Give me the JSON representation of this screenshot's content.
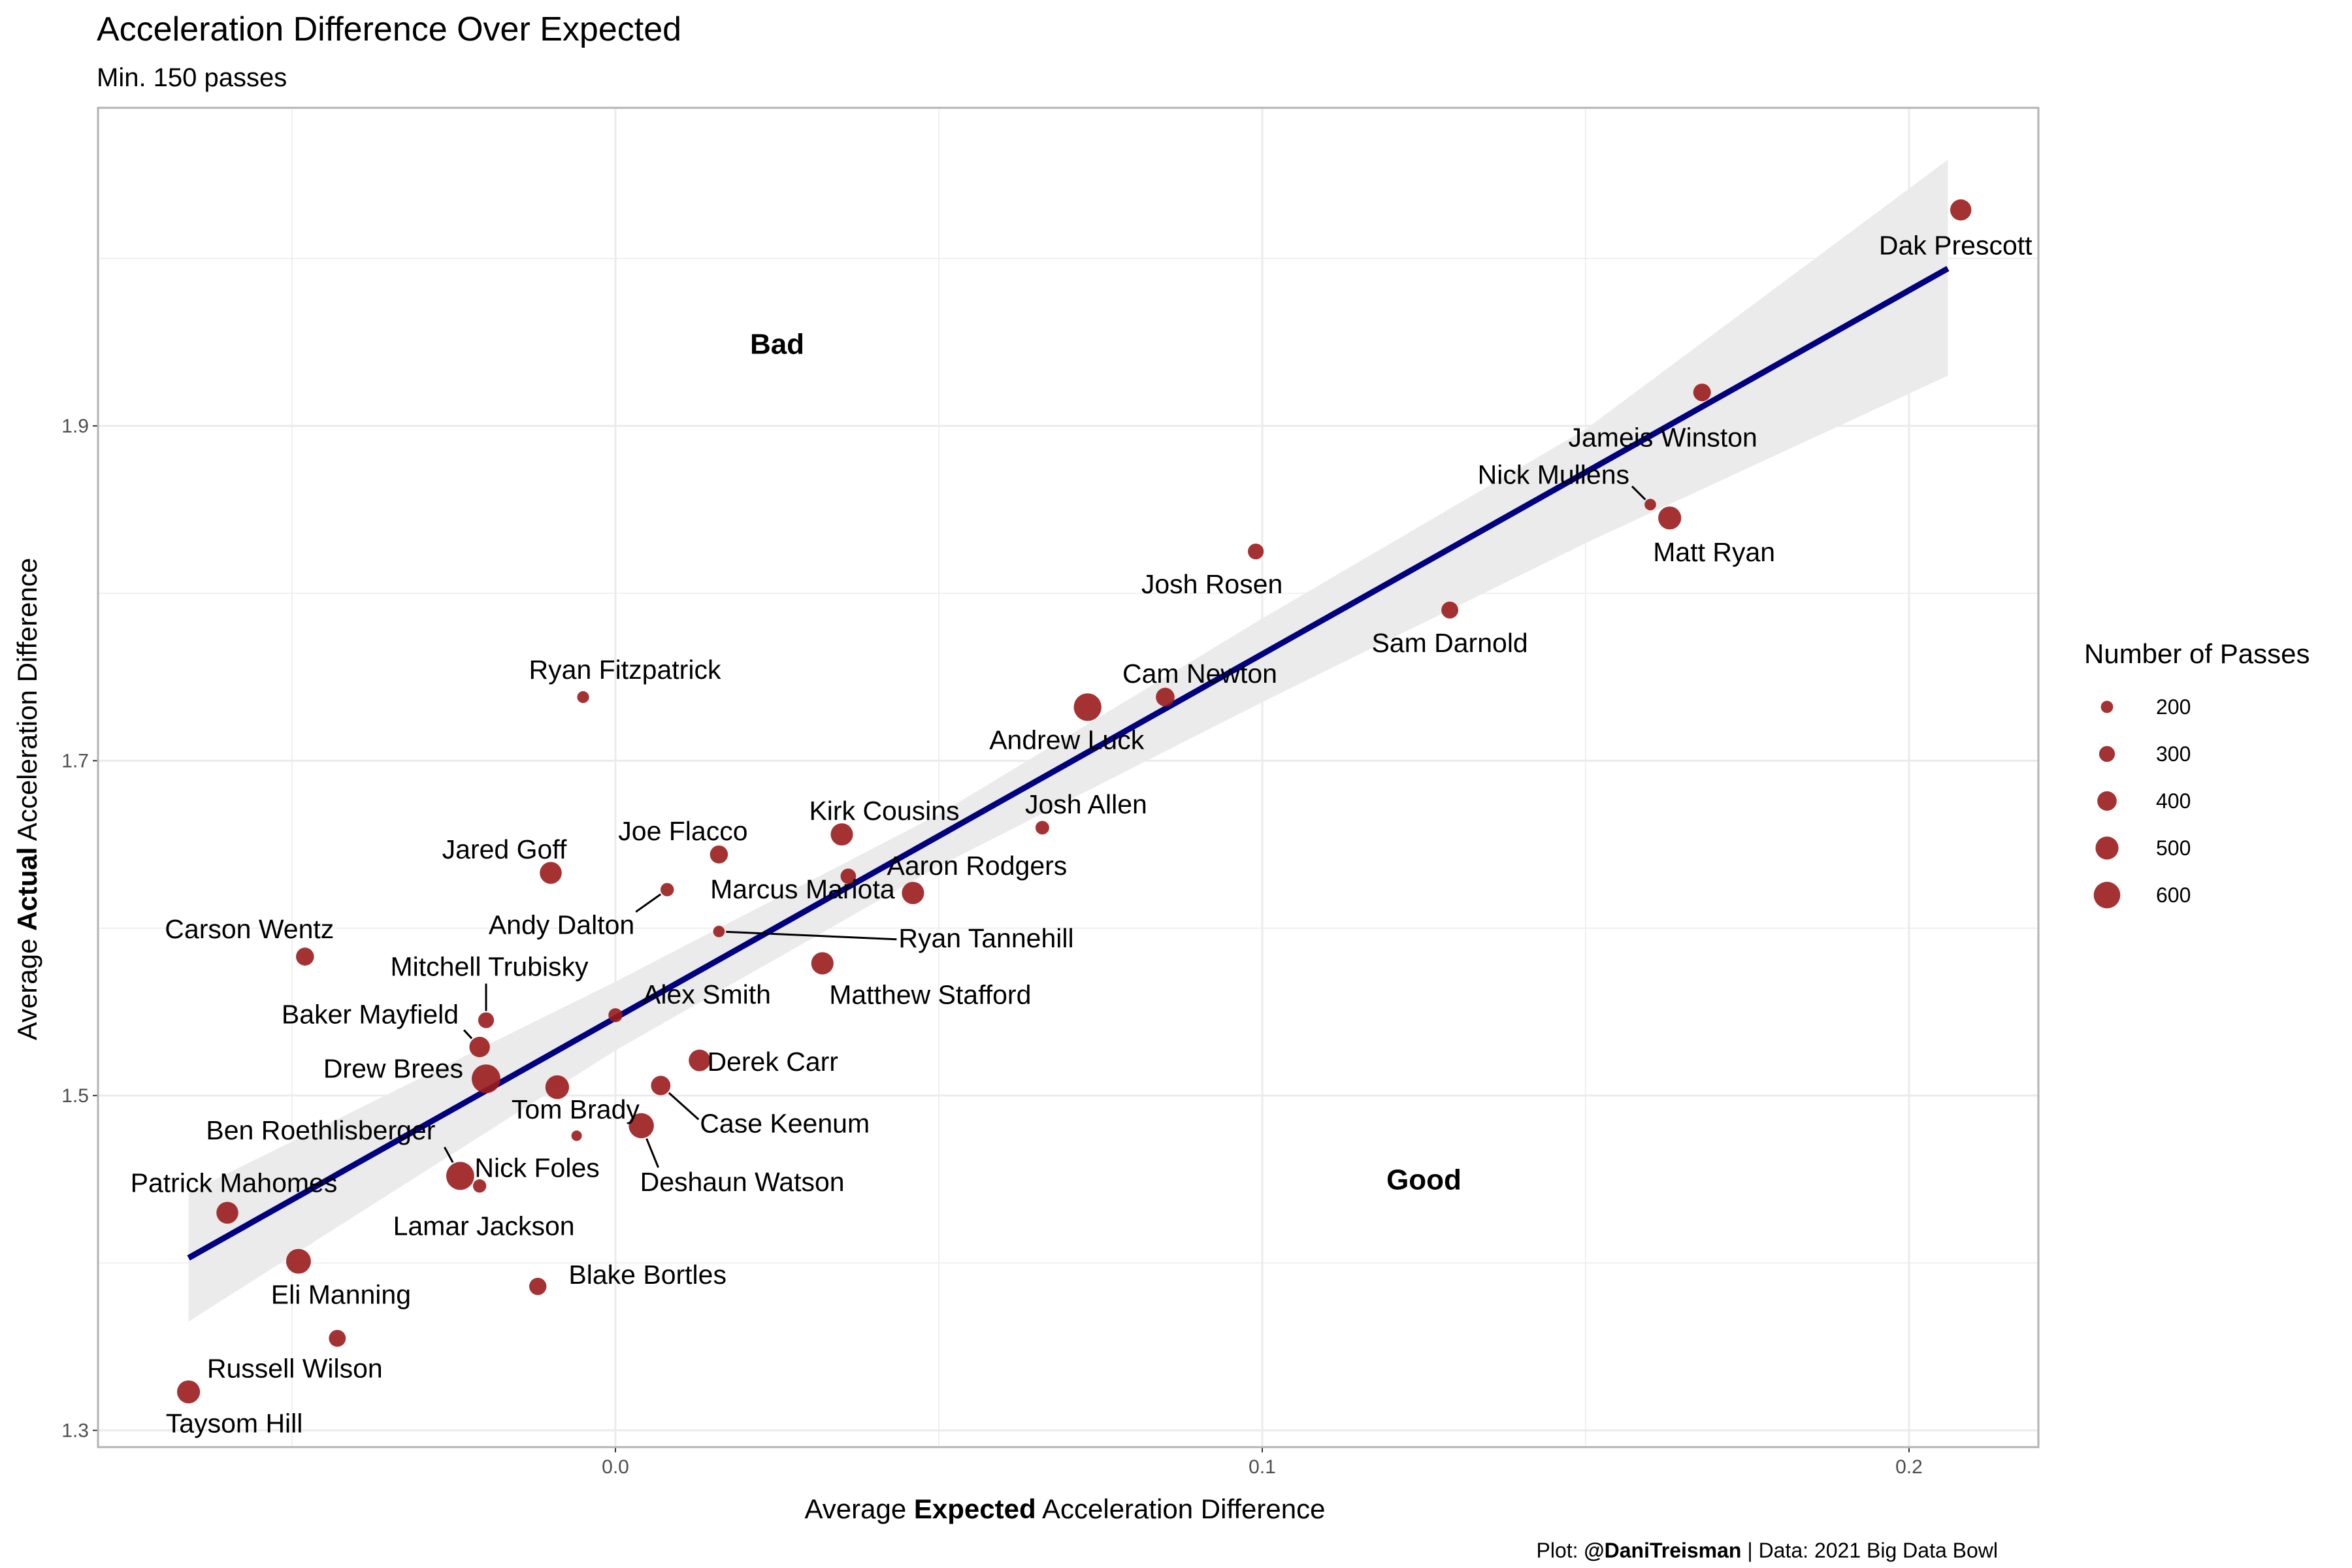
{
  "title": "Acceleration Difference Over Expected",
  "subtitle": "Min. 150 passes",
  "caption": {
    "prefix": "Plot: ",
    "handle": "@DaniTreisman",
    "suffix": " | Data: 2021 Big Data Bowl"
  },
  "axes": {
    "x": {
      "pre": "Average ",
      "bold": "Expected",
      "post": " Acceleration Difference"
    },
    "y": {
      "pre": "Average ",
      "bold": "Actual",
      "post": " Acceleration Difference"
    }
  },
  "regions": {
    "bad": "Bad",
    "good": "Good"
  },
  "legend": {
    "title": "Number of Passes",
    "entries": [
      {
        "label": "200",
        "value": 200
      },
      {
        "label": "300",
        "value": 300
      },
      {
        "label": "400",
        "value": 400
      },
      {
        "label": "500",
        "value": 500
      },
      {
        "label": "600",
        "value": 600
      }
    ]
  },
  "colors": {
    "point": "#9b1c1c",
    "line": "#000080",
    "band": "#ebebeb",
    "grid": "#ebebeb",
    "panel_border": "#b3b3b3"
  },
  "chart_data": {
    "type": "scatter",
    "xlim": [
      -0.08,
      0.22
    ],
    "ylim": [
      1.29,
      2.09
    ],
    "x_ticks": [
      {
        "value": 0.0,
        "label": "0.0"
      },
      {
        "value": 0.1,
        "label": "0.1"
      },
      {
        "value": 0.2,
        "label": "0.2"
      }
    ],
    "y_ticks": [
      {
        "value": 1.3,
        "label": "1.3"
      },
      {
        "value": 1.5,
        "label": "1.5"
      },
      {
        "value": 1.7,
        "label": "1.7"
      },
      {
        "value": 1.9,
        "label": "1.9"
      }
    ],
    "grid": true,
    "legend_position": "right",
    "fit_line": {
      "x": [
        -0.066,
        0.206
      ],
      "y": [
        1.403,
        1.994
      ]
    },
    "confidence_band": {
      "x": [
        -0.066,
        0.0,
        0.05,
        0.1,
        0.15,
        0.206
      ],
      "lower": [
        1.365,
        1.527,
        1.637,
        1.735,
        1.83,
        1.93
      ],
      "upper": [
        1.442,
        1.568,
        1.668,
        1.785,
        1.898,
        2.059
      ]
    },
    "points": [
      {
        "name": "Dak Prescott",
        "x": 0.208,
        "y": 2.029,
        "passes": 450
      },
      {
        "name": "Jameis Winston",
        "x": 0.168,
        "y": 1.92,
        "passes": 350
      },
      {
        "name": "Nick Mullens",
        "x": 0.16,
        "y": 1.853,
        "passes": 180
      },
      {
        "name": "Matt Ryan",
        "x": 0.163,
        "y": 1.845,
        "passes": 500
      },
      {
        "name": "Josh Rosen",
        "x": 0.099,
        "y": 1.825,
        "passes": 300
      },
      {
        "name": "Sam Darnold",
        "x": 0.129,
        "y": 1.79,
        "passes": 330
      },
      {
        "name": "Ryan Fitzpatrick",
        "x": -0.005,
        "y": 1.738,
        "passes": 190
      },
      {
        "name": "Cam Newton",
        "x": 0.085,
        "y": 1.738,
        "passes": 380
      },
      {
        "name": "Andrew Luck",
        "x": 0.073,
        "y": 1.732,
        "passes": 630
      },
      {
        "name": "Josh Allen",
        "x": 0.066,
        "y": 1.66,
        "passes": 240
      },
      {
        "name": "Kirk Cousins",
        "x": 0.035,
        "y": 1.656,
        "passes": 480
      },
      {
        "name": "Joe Flacco",
        "x": 0.016,
        "y": 1.644,
        "passes": 360
      },
      {
        "name": "Jared Goff",
        "x": -0.01,
        "y": 1.633,
        "passes": 470
      },
      {
        "name": "Marcus Mariota",
        "x": 0.036,
        "y": 1.631,
        "passes": 290
      },
      {
        "name": "Andy Dalton",
        "x": 0.008,
        "y": 1.623,
        "passes": 230
      },
      {
        "name": "Aaron Rodgers",
        "x": 0.046,
        "y": 1.621,
        "passes": 480
      },
      {
        "name": "Ryan Tannehill",
        "x": 0.016,
        "y": 1.598,
        "passes": 180
      },
      {
        "name": "Carson Wentz",
        "x": -0.048,
        "y": 1.583,
        "passes": 360
      },
      {
        "name": "Matthew Stafford",
        "x": 0.032,
        "y": 1.579,
        "passes": 480
      },
      {
        "name": "Alex Smith",
        "x": 0.0,
        "y": 1.548,
        "passes": 250
      },
      {
        "name": "Mitchell Trubisky",
        "x": -0.02,
        "y": 1.545,
        "passes": 300
      },
      {
        "name": "Baker Mayfield",
        "x": -0.021,
        "y": 1.529,
        "passes": 430
      },
      {
        "name": "Derek Carr",
        "x": 0.013,
        "y": 1.521,
        "passes": 460
      },
      {
        "name": "Drew Brees",
        "x": -0.02,
        "y": 1.51,
        "passes": 660
      },
      {
        "name": "Case Keenum",
        "x": 0.007,
        "y": 1.506,
        "passes": 400
      },
      {
        "name": "Tom Brady",
        "x": -0.009,
        "y": 1.505,
        "passes": 520
      },
      {
        "name": "Deshaun Watson",
        "x": 0.004,
        "y": 1.482,
        "passes": 560
      },
      {
        "name": "Ben Roethlisberger",
        "x": -0.024,
        "y": 1.452,
        "passes": 640
      },
      {
        "name": "Nick Foles",
        "x": -0.021,
        "y": 1.446,
        "passes": 230
      },
      {
        "name": "Lamar Jackson",
        "x": -0.006,
        "y": 1.476,
        "passes": 150
      },
      {
        "name": "Patrick Mahomes",
        "x": -0.06,
        "y": 1.43,
        "passes": 470
      },
      {
        "name": "Eli Manning",
        "x": -0.049,
        "y": 1.401,
        "passes": 550
      },
      {
        "name": "Blake Bortles",
        "x": -0.012,
        "y": 1.386,
        "passes": 340
      },
      {
        "name": "Russell Wilson",
        "x": -0.043,
        "y": 1.355,
        "passes": 330
      },
      {
        "name": "Taysom Hill",
        "x": -0.066,
        "y": 1.323,
        "passes": 500
      }
    ]
  }
}
